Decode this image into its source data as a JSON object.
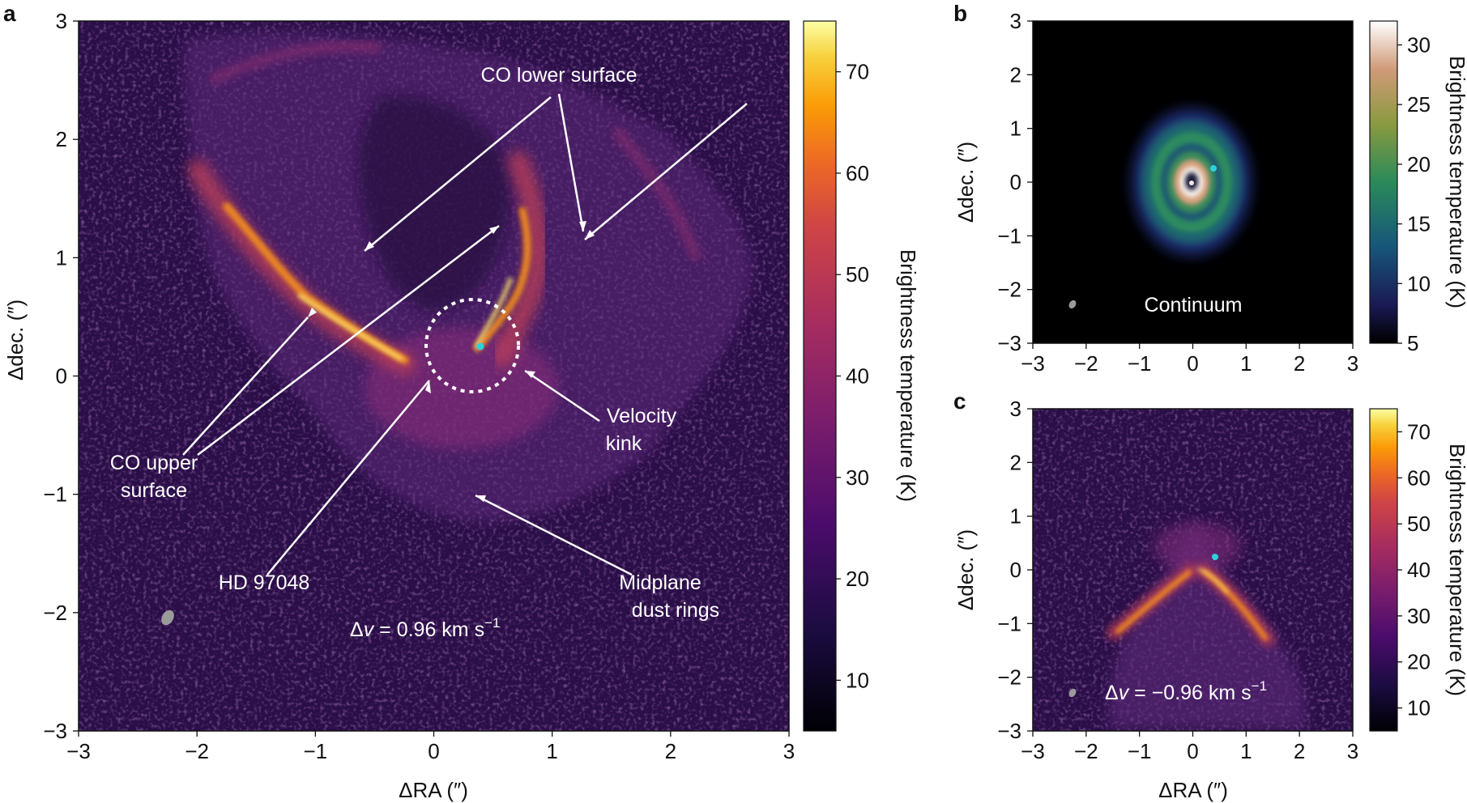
{
  "chart_data": [
    {
      "panel_label": "a",
      "type": "heatmap",
      "colormap": "inferno",
      "xlabel": "ΔRA (″)",
      "ylabel": "Δdec. (″)",
      "xlim": [
        -3,
        3
      ],
      "ylim": [
        -3,
        3
      ],
      "x_ticks": [
        "−3",
        "−2",
        "−1",
        "0",
        "1",
        "2",
        "3"
      ],
      "y_ticks": [
        "−3",
        "−2",
        "−1",
        "0",
        "1",
        "2",
        "3"
      ],
      "colorbar": {
        "label": "Brightness temperature (K)",
        "range": [
          5,
          75
        ],
        "ticks": [
          "10",
          "20",
          "30",
          "40",
          "50",
          "60",
          "70"
        ]
      },
      "velocity_label": {
        "prefix": "Δ",
        "var": "v",
        "text": " = 0.96 km s",
        "sup": "−1"
      },
      "annotations": [
        {
          "lines": [
            "CO lower surface"
          ]
        },
        {
          "lines": [
            "CO upper",
            "surface"
          ]
        },
        {
          "lines": [
            "Velocity",
            "kink"
          ]
        },
        {
          "lines": [
            "HD 97048"
          ]
        },
        {
          "lines": [
            "Midplane",
            "dust rings"
          ]
        }
      ],
      "planet_marker": {
        "x": 0.4,
        "y": 0.25,
        "color": "#29d3dc"
      }
    },
    {
      "panel_label": "b",
      "type": "heatmap",
      "colormap": "cubehelix",
      "ylabel": "Δdec. (″)",
      "xlim": [
        -3,
        3
      ],
      "ylim": [
        -3,
        3
      ],
      "x_ticks": [
        "−3",
        "−2",
        "−1",
        "0",
        "1",
        "2",
        "3"
      ],
      "y_ticks": [
        "−3",
        "−2",
        "−1",
        "0",
        "1",
        "2",
        "3"
      ],
      "colorbar": {
        "label": "Brightness temperature (K)",
        "range": [
          5,
          32
        ],
        "ticks": [
          "5",
          "10",
          "15",
          "20",
          "25",
          "30"
        ]
      },
      "annotation": "Continuum",
      "planet_marker": {
        "x": 0.4,
        "y": 0.28,
        "color": "#29d3dc"
      }
    },
    {
      "panel_label": "c",
      "type": "heatmap",
      "colormap": "inferno",
      "xlabel": "ΔRA (″)",
      "ylabel": "Δdec. (″)",
      "xlim": [
        -3,
        3
      ],
      "ylim": [
        -3,
        3
      ],
      "x_ticks": [
        "−3",
        "−2",
        "−1",
        "0",
        "1",
        "2",
        "3"
      ],
      "y_ticks": [
        "−3",
        "−2",
        "−1",
        "0",
        "1",
        "2",
        "3"
      ],
      "colorbar": {
        "label": "Brightness temperature (K)",
        "range": [
          5,
          75
        ],
        "ticks": [
          "10",
          "20",
          "30",
          "40",
          "50",
          "60",
          "70"
        ]
      },
      "velocity_label": {
        "prefix": "Δ",
        "var": "v",
        "text": " = −0.96 km s",
        "sup": "−1"
      },
      "planet_marker": {
        "x": 0.4,
        "y": 0.28,
        "color": "#29d3dc"
      }
    }
  ]
}
